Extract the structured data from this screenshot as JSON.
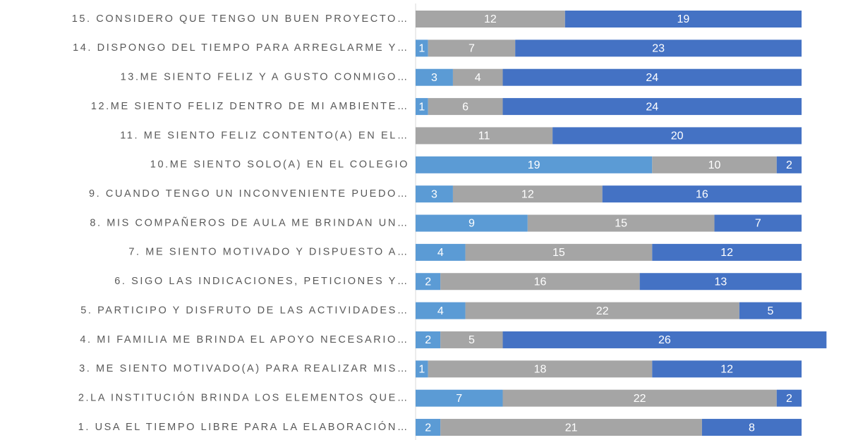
{
  "chart_data": {
    "type": "stacked-barh",
    "categories": [
      "15. CONSIDERO QUE TENGO UN BUEN PROYECTO…",
      "14. DISPONGO DEL TIEMPO PARA ARREGLARME Y…",
      "13.ME SIENTO FELIZ Y A GUSTO CONMIGO…",
      "12.ME SIENTO FELIZ DENTRO DE MI AMBIENTE…",
      "11. ME SIENTO FELIZ CONTENTO(A) EN EL…",
      "10.ME SIENTO SOLO(A) EN EL COLEGIO",
      "9. CUANDO TENGO UN INCONVENIENTE PUEDO…",
      "8. MIS COMPAÑEROS DE AULA ME BRINDAN UN…",
      "7. ME SIENTO MOTIVADO Y DISPUESTO A…",
      "6. SIGO LAS INDICACIONES, PETICIONES Y…",
      "5. PARTICIPO Y DISFRUTO DE LAS ACTIVIDADES…",
      "4. MI FAMILIA ME BRINDA EL APOYO NECESARIO…",
      "3. ME SIENTO MOTIVADO(A) PARA REALIZAR MIS…",
      "2.LA INSTITUCIÓN BRINDA LOS ELEMENTOS QUE…",
      "1. USA EL TIEMPO LIBRE PARA LA ELABORACIÓN…"
    ],
    "series": [
      {
        "color": "#5b9bd5",
        "values": [
          0,
          1,
          3,
          1,
          0,
          19,
          3,
          9,
          4,
          2,
          4,
          2,
          1,
          7,
          2
        ]
      },
      {
        "color": "#a5a5a5",
        "values": [
          12,
          7,
          4,
          6,
          11,
          10,
          12,
          15,
          15,
          16,
          22,
          5,
          18,
          22,
          21
        ]
      },
      {
        "color": "#4472c4",
        "values": [
          19,
          23,
          24,
          24,
          20,
          2,
          16,
          7,
          12,
          13,
          5,
          26,
          12,
          2,
          8
        ]
      }
    ],
    "xlim": [
      0,
      34
    ]
  }
}
